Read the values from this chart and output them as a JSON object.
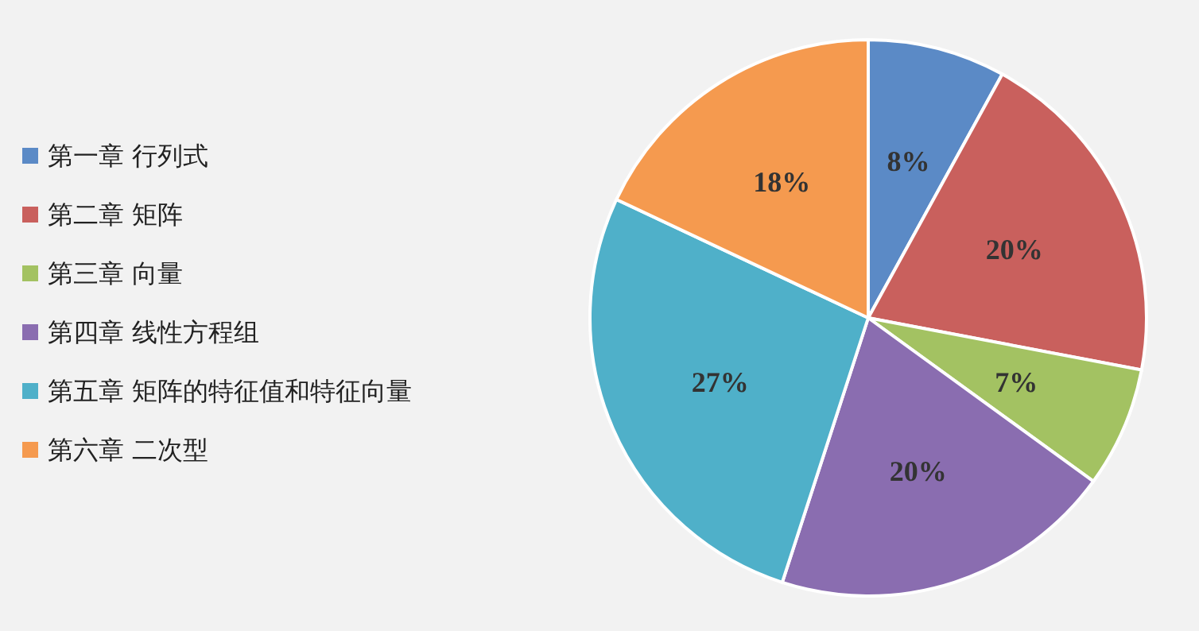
{
  "chart_data": {
    "type": "pie",
    "categories": [
      "第一章 行列式",
      "第二章 矩阵",
      "第三章 向量",
      "第四章 线性方程组",
      "第五章 矩阵的特征值和特征向量",
      "第六章 二次型"
    ],
    "values": [
      8,
      20,
      7,
      20,
      27,
      18
    ],
    "colors": [
      "#5b8ac6",
      "#c9605d",
      "#a3c262",
      "#8a6db0",
      "#4fb0c9",
      "#f59a4f"
    ],
    "value_labels": [
      "8%",
      "20%",
      "7%",
      "20%",
      "27%",
      "18%"
    ],
    "legend": "left"
  }
}
